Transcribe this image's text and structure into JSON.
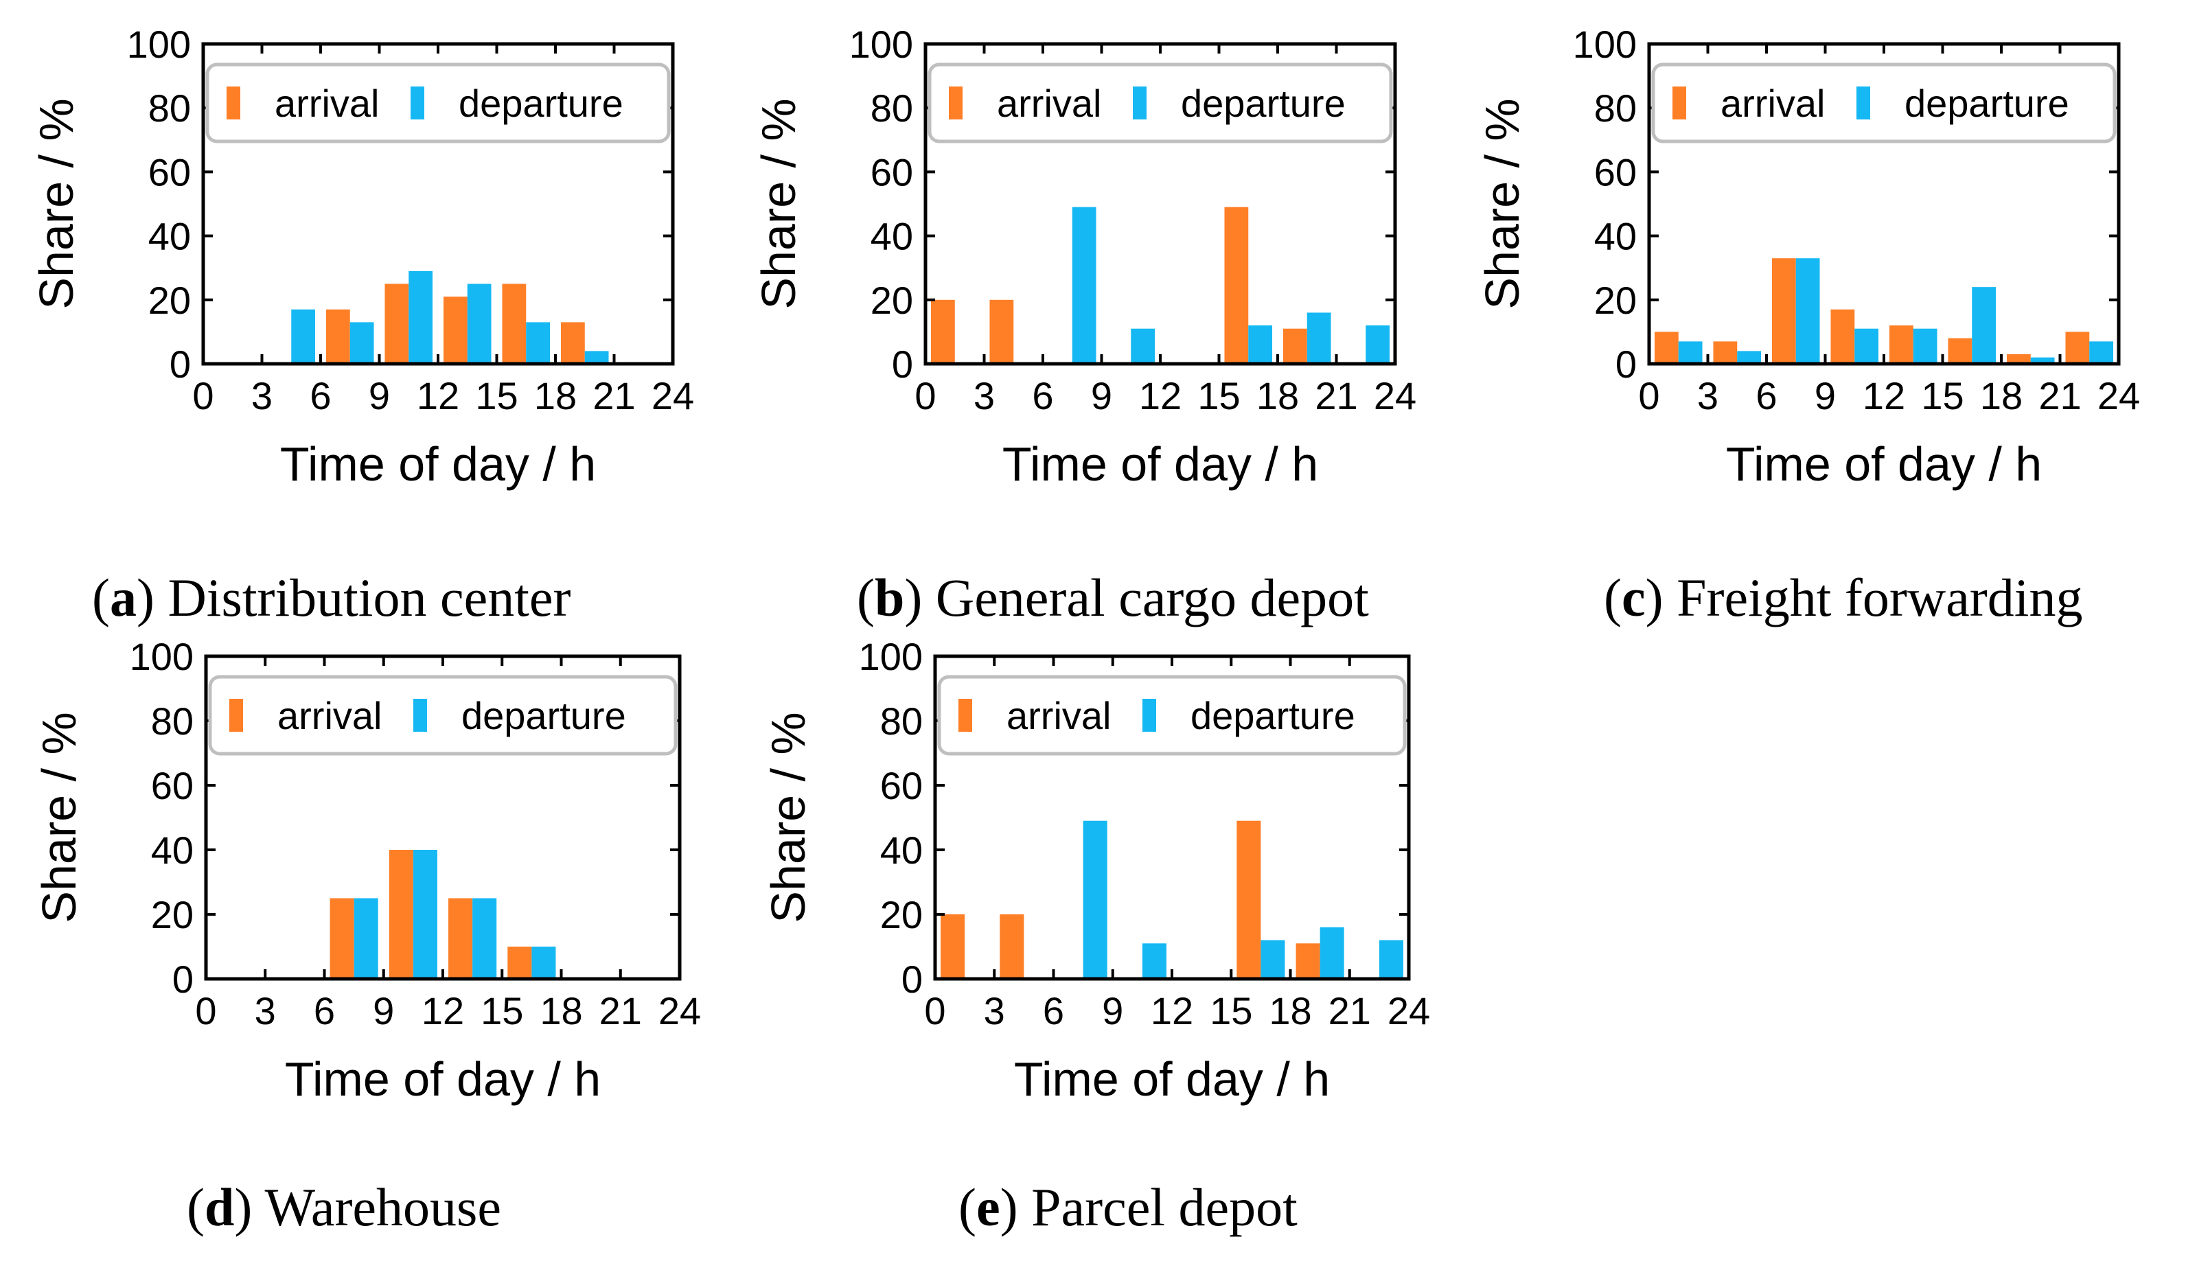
{
  "colors": {
    "arrival": "#ff7f27",
    "departure": "#15b8f3",
    "axis": "#000000",
    "legend_border": "#bfbfbf"
  },
  "chart_data": [
    {
      "id": "a",
      "type": "bar",
      "caption_letter": "a",
      "caption_text": "Distribution center",
      "xlabel": "Time of day / h",
      "ylabel": "Share / %",
      "xlim": [
        0,
        24
      ],
      "ylim": [
        0,
        100
      ],
      "xticks": [
        "0",
        "3",
        "6",
        "9",
        "12",
        "15",
        "18",
        "21",
        "24"
      ],
      "yticks": [
        "0",
        "20",
        "40",
        "60",
        "80",
        "100"
      ],
      "legend": [
        "arrival",
        "departure"
      ],
      "legend_position": "top",
      "bin_centers": [
        1.5,
        4.5,
        7.5,
        10.5,
        13.5,
        16.5,
        19.5,
        22.5
      ],
      "series": [
        {
          "name": "arrival",
          "values": [
            0,
            0,
            17,
            25,
            21,
            25,
            13,
            0
          ]
        },
        {
          "name": "departure",
          "values": [
            0,
            17,
            13,
            29,
            25,
            13,
            4,
            0
          ]
        }
      ]
    },
    {
      "id": "b",
      "type": "bar",
      "caption_letter": "b",
      "caption_text": "General cargo depot",
      "xlabel": "Time of day / h",
      "ylabel": "Share / %",
      "xlim": [
        0,
        24
      ],
      "ylim": [
        0,
        100
      ],
      "xticks": [
        "0",
        "3",
        "6",
        "9",
        "12",
        "15",
        "18",
        "21",
        "24"
      ],
      "yticks": [
        "0",
        "20",
        "40",
        "60",
        "80",
        "100"
      ],
      "legend": [
        "arrival",
        "departure"
      ],
      "legend_position": "top",
      "bin_centers": [
        1.5,
        4.5,
        7.5,
        10.5,
        13.5,
        16.5,
        19.5,
        22.5
      ],
      "series": [
        {
          "name": "arrival",
          "values": [
            20,
            20,
            0,
            0,
            0,
            49,
            11,
            0
          ]
        },
        {
          "name": "departure",
          "values": [
            0,
            0,
            49,
            11,
            0,
            12,
            16,
            12
          ]
        }
      ]
    },
    {
      "id": "c",
      "type": "bar",
      "caption_letter": "c",
      "caption_text": "Freight forwarding",
      "xlabel": "Time of day / h",
      "ylabel": "Share / %",
      "xlim": [
        0,
        24
      ],
      "ylim": [
        0,
        100
      ],
      "xticks": [
        "0",
        "3",
        "6",
        "9",
        "12",
        "15",
        "18",
        "21",
        "24"
      ],
      "yticks": [
        "0",
        "20",
        "40",
        "60",
        "80",
        "100"
      ],
      "legend": [
        "arrival",
        "departure"
      ],
      "legend_position": "top",
      "bin_centers": [
        1.5,
        4.5,
        7.5,
        10.5,
        13.5,
        16.5,
        19.5,
        22.5
      ],
      "series": [
        {
          "name": "arrival",
          "values": [
            10,
            7,
            33,
            17,
            12,
            8,
            3,
            10
          ]
        },
        {
          "name": "departure",
          "values": [
            7,
            4,
            33,
            11,
            11,
            24,
            2,
            7
          ]
        }
      ]
    },
    {
      "id": "d",
      "type": "bar",
      "caption_letter": "d",
      "caption_text": "Warehouse",
      "xlabel": "Time of day / h",
      "ylabel": "Share / %",
      "xlim": [
        0,
        24
      ],
      "ylim": [
        0,
        100
      ],
      "xticks": [
        "0",
        "3",
        "6",
        "9",
        "12",
        "15",
        "18",
        "21",
        "24"
      ],
      "yticks": [
        "0",
        "20",
        "40",
        "60",
        "80",
        "100"
      ],
      "legend": [
        "arrival",
        "departure"
      ],
      "legend_position": "top",
      "bin_centers": [
        1.5,
        4.5,
        7.5,
        10.5,
        13.5,
        16.5,
        19.5,
        22.5
      ],
      "series": [
        {
          "name": "arrival",
          "values": [
            0,
            0,
            25,
            40,
            25,
            10,
            0,
            0
          ]
        },
        {
          "name": "departure",
          "values": [
            0,
            0,
            25,
            40,
            25,
            10,
            0,
            0
          ]
        }
      ]
    },
    {
      "id": "e",
      "type": "bar",
      "caption_letter": "e",
      "caption_text": "Parcel depot",
      "xlabel": "Time of day / h",
      "ylabel": "Share / %",
      "xlim": [
        0,
        24
      ],
      "ylim": [
        0,
        100
      ],
      "xticks": [
        "0",
        "3",
        "6",
        "9",
        "12",
        "15",
        "18",
        "21",
        "24"
      ],
      "yticks": [
        "0",
        "20",
        "40",
        "60",
        "80",
        "100"
      ],
      "legend": [
        "arrival",
        "departure"
      ],
      "legend_position": "top",
      "bin_centers": [
        1.5,
        4.5,
        7.5,
        10.5,
        13.5,
        16.5,
        19.5,
        22.5
      ],
      "series": [
        {
          "name": "arrival",
          "values": [
            20,
            20,
            0,
            0,
            0,
            49,
            11,
            0
          ]
        },
        {
          "name": "departure",
          "values": [
            0,
            0,
            49,
            11,
            0,
            12,
            16,
            12
          ]
        }
      ]
    }
  ]
}
